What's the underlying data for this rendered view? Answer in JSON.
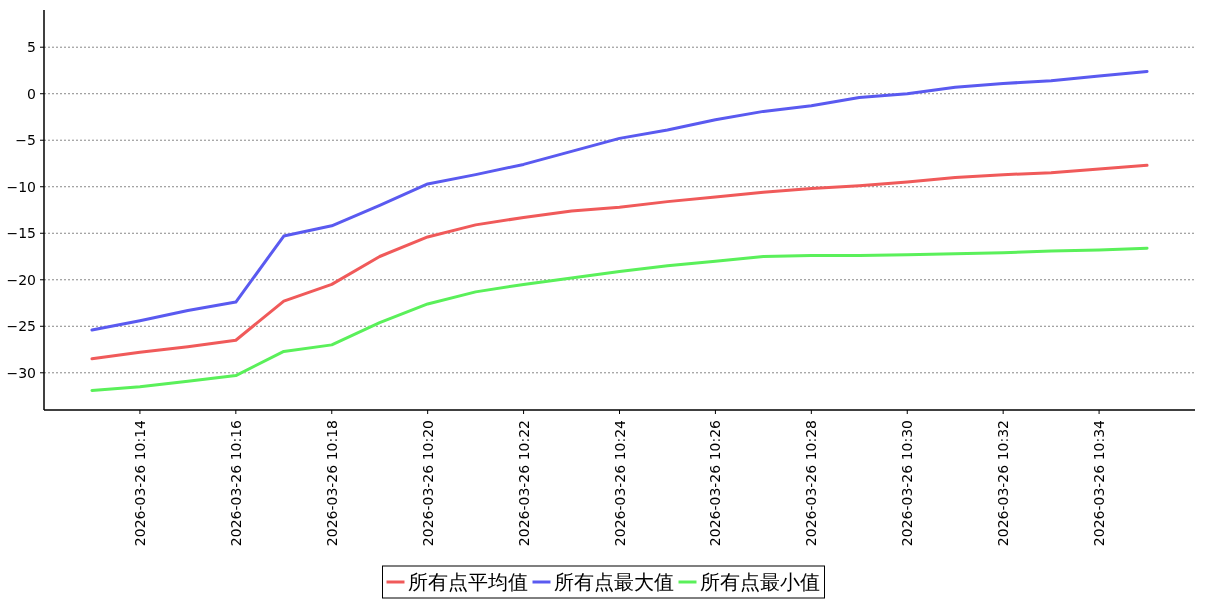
{
  "chart_data": {
    "type": "line",
    "x": [
      "2026-03-26T10:13",
      "2026-03-26T10:14",
      "2026-03-26T10:15",
      "2026-03-26T10:16",
      "2026-03-26T10:17",
      "2026-03-26T10:18",
      "2026-03-26T10:19",
      "2026-03-26T10:20",
      "2026-03-26T10:21",
      "2026-03-26T10:22",
      "2026-03-26T10:23",
      "2026-03-26T10:24",
      "2026-03-26T10:25",
      "2026-03-26T10:26",
      "2026-03-26T10:27",
      "2026-03-26T10:28",
      "2026-03-26T10:29",
      "2026-03-26T10:30",
      "2026-03-26T10:31",
      "2026-03-26T10:32",
      "2026-03-26T10:33",
      "2026-03-26T10:34",
      "2026-03-26T10:35"
    ],
    "series": [
      {
        "name": "所有点平均值",
        "color": "#f05a5a",
        "values": [
          -28.5,
          -27.8,
          -27.2,
          -26.5,
          -22.3,
          -20.5,
          -17.5,
          -15.4,
          -14.1,
          -13.3,
          -12.6,
          -12.2,
          -11.6,
          -11.1,
          -10.6,
          -10.2,
          -9.9,
          -9.5,
          -9.0,
          -8.7,
          -8.5,
          -8.1,
          -7.7
        ]
      },
      {
        "name": "所有点最大值",
        "color": "#5a5af0",
        "values": [
          -25.4,
          -24.4,
          -23.3,
          -22.4,
          -15.3,
          -14.2,
          -12.0,
          -9.7,
          -8.7,
          -7.6,
          -6.2,
          -4.8,
          -3.9,
          -2.8,
          -1.9,
          -1.3,
          -0.4,
          0,
          0.7,
          1.1,
          1.4,
          1.9,
          2.4
        ]
      },
      {
        "name": "所有点最小值",
        "color": "#5af05a",
        "values": [
          -31.9,
          -31.5,
          -30.9,
          -30.3,
          -27.7,
          -27.0,
          -24.6,
          -22.6,
          -21.3,
          -20.5,
          -19.8,
          -19.1,
          -18.5,
          -18.0,
          -17.5,
          -17.4,
          -17.4,
          -17.3,
          -17.2,
          -17.1,
          -16.9,
          -16.8,
          -16.6
        ]
      }
    ],
    "xlim": [
      "2026-03-26T10:12",
      "2026-03-26T10:36"
    ],
    "xticks": [
      {
        "value": "2026-03-26T10:14",
        "label": "2026-03-26 10:14"
      },
      {
        "value": "2026-03-26T10:16",
        "label": "2026-03-26 10:16"
      },
      {
        "value": "2026-03-26T10:18",
        "label": "2026-03-26 10:18"
      },
      {
        "value": "2026-03-26T10:20",
        "label": "2026-03-26 10:20"
      },
      {
        "value": "2026-03-26T10:22",
        "label": "2026-03-26 10:22"
      },
      {
        "value": "2026-03-26T10:24",
        "label": "2026-03-26 10:24"
      },
      {
        "value": "2026-03-26T10:26",
        "label": "2026-03-26 10:26"
      },
      {
        "value": "2026-03-26T10:28",
        "label": "2026-03-26 10:28"
      },
      {
        "value": "2026-03-26T10:30",
        "label": "2026-03-26 10:30"
      },
      {
        "value": "2026-03-26T10:32",
        "label": "2026-03-26 10:32"
      },
      {
        "value": "2026-03-26T10:34",
        "label": "2026-03-26 10:34"
      }
    ],
    "ylim": [
      -34,
      9
    ],
    "yticks": [
      -30,
      -25,
      -20,
      -15,
      -10,
      -5,
      0,
      5
    ],
    "grid": "y",
    "legend": "bottom",
    "marker": "none",
    "line_style": "solid"
  }
}
